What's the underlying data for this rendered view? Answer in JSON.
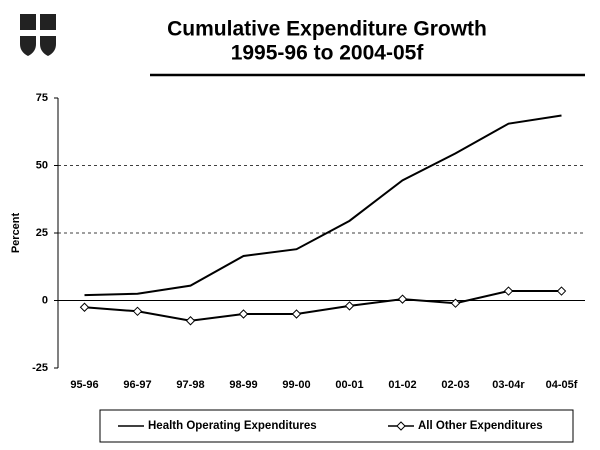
{
  "chart_data": {
    "type": "line",
    "title": "Cumulative Expenditure Growth",
    "subtitle": "1995-96 to 2004-05f",
    "y_label": "Percent",
    "categories": [
      "95-96",
      "96-97",
      "97-98",
      "98-99",
      "99-00",
      "00-01",
      "01-02",
      "02-03",
      "03-04r",
      "04-05f"
    ],
    "series": [
      {
        "name": "Health Operating Expenditures",
        "color": "#000000",
        "marker": "none",
        "values": [
          2,
          2.5,
          5.5,
          16.5,
          19,
          29.5,
          44.5,
          54.5,
          65.5,
          68.5
        ]
      },
      {
        "name": "All Other Expenditures",
        "color": "#000000",
        "marker": "diamond",
        "values": [
          -2.5,
          -4,
          -7.5,
          -5,
          -5,
          -2,
          0.5,
          -1,
          3.5,
          3.5
        ]
      }
    ],
    "ylim": [
      -25,
      75
    ],
    "yticks": [
      -25,
      0,
      25,
      50,
      75
    ],
    "grid": true,
    "legend": "bottom"
  }
}
